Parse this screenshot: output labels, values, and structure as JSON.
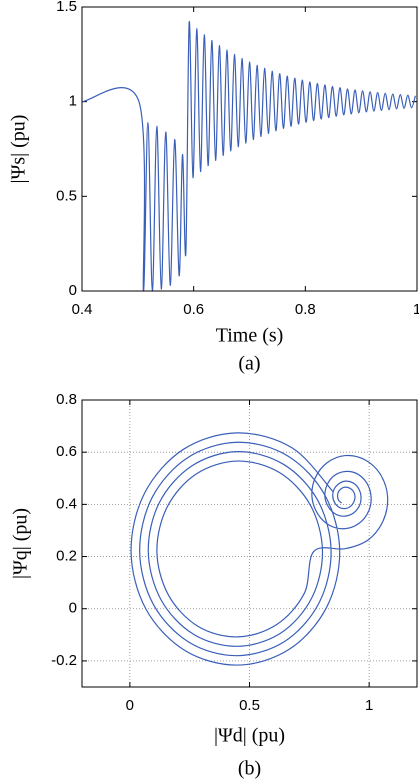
{
  "chart_data": [
    {
      "type": "line",
      "x": [
        0.4,
        0.502,
        0.51,
        0.518,
        0.526,
        0.534,
        0.542,
        0.55,
        0.558,
        0.566,
        0.574,
        0.58,
        0.586,
        0.592,
        0.59875,
        0.6055,
        0.61225,
        0.619,
        0.62575,
        0.6325,
        0.63925,
        0.646,
        0.65275,
        0.6595,
        0.66625,
        0.673,
        0.67975,
        0.6865,
        0.69325,
        0.7,
        0.70675,
        0.7135,
        0.72025,
        0.727,
        0.73375,
        0.7405,
        0.74725,
        0.754,
        0.76075,
        0.7675,
        0.77425,
        0.781,
        0.78775,
        0.7945,
        0.80125,
        0.808,
        0.81475,
        0.8215,
        0.82825,
        0.835,
        0.84175,
        0.8485,
        0.85525,
        0.862,
        0.86875,
        0.8755,
        0.88225,
        0.889,
        0.89575,
        0.9025,
        0.90925,
        0.916,
        0.92275,
        0.9295,
        0.93625,
        0.943,
        0.94975,
        0.9565,
        0.96325,
        0.97,
        0.97675,
        0.9835,
        0.99025,
        0.997
      ],
      "values": [
        1,
        1,
        0,
        0.89,
        0,
        0.87,
        0.01,
        0.84,
        0.03,
        0.8,
        0.08,
        0.72,
        0.2,
        1.42,
        0.598,
        1.385,
        0.631,
        1.353,
        0.662,
        1.323,
        0.69,
        1.296,
        0.716,
        1.272,
        0.74,
        1.249,
        0.762,
        1.228,
        0.781,
        1.209,
        0.8,
        1.192,
        0.816,
        1.176,
        0.832,
        1.161,
        0.846,
        1.148,
        0.859,
        1.135,
        0.87,
        1.124,
        0.881,
        1.114,
        0.891,
        1.104,
        0.9,
        1.096,
        0.908,
        1.088,
        0.916,
        1.08,
        0.923,
        1.074,
        0.93,
        1.067,
        0.935,
        1.062,
        0.941,
        1.057,
        0.946,
        1.052,
        0.95,
        1.048,
        0.954,
        1.044,
        0.958,
        1.04,
        0.962,
        1.037,
        0.965,
        1.034,
        0.968,
        1.031
      ],
      "color": "#3a5fb8",
      "xlim": [
        0.4,
        1
      ],
      "ylim": [
        0,
        1.5
      ],
      "xticks": [
        0.4,
        0.6,
        0.8,
        1
      ],
      "yticks": [
        0,
        0.5,
        1,
        1.5
      ],
      "xlabel": "Time (s)",
      "ylabel": "|Ψs| (pu)",
      "caption": "(a)",
      "grid": false
    },
    {
      "type": "line",
      "x": [
        0.848,
        0.679,
        0.45,
        0.224,
        0.062,
        0.005,
        0.067,
        0.23,
        0.45,
        0.667,
        0.822,
        0.877,
        0.817,
        0.661,
        0.45,
        0.242,
        0.093,
        0.041,
        0.098,
        0.248,
        0.45,
        0.649,
        0.791,
        0.841,
        0.786,
        0.643,
        0.45,
        0.26,
        0.124,
        0.077,
        0.13,
        0.266,
        0.45,
        0.631,
        0.76,
        0.805,
        0.755,
        0.625,
        0.45,
        0.278,
        0.156,
        0.113,
        0.161,
        0.284,
        0.45,
        0.613,
        0.729,
        0.769,
        0.9,
        0.996,
        1.059,
        1.077,
        1.047,
        0.982,
        0.9,
        0.825,
        0.775,
        0.761,
        0.785,
        0.836,
        0.9,
        0.959,
        0.998,
        1.008,
        0.99,
        0.95,
        0.9,
        0.854,
        0.824,
        0.815,
        0.83,
        0.861,
        0.9,
        0.936,
        0.96,
        0.966,
        0.955,
        0.931,
        0.9,
        0.872,
        0.853,
        0.848,
        0.857,
        0.876,
        0.9,
        0.922,
        0.936,
        0.941,
        0.934,
        0.919,
        0.9,
        0.883,
        0.871,
        0.868,
        0.873,
        0.885
      ],
      "values": [
        0.45,
        0.616,
        0.674,
        0.611,
        0.444,
        0.22,
        -0.001,
        -0.16,
        -0.216,
        -0.155,
        0.005,
        0.22,
        0.432,
        0.585,
        0.638,
        0.579,
        0.426,
        0.22,
        0.017,
        -0.129,
        -0.18,
        -0.124,
        0.023,
        0.22,
        0.414,
        0.553,
        0.602,
        0.548,
        0.408,
        0.22,
        0.035,
        -0.098,
        -0.144,
        -0.093,
        0.041,
        0.22,
        0.396,
        0.522,
        0.566,
        0.517,
        0.39,
        0.22,
        0.053,
        -0.067,
        -0.108,
        -0.061,
        0.059,
        0.22,
        0.23,
        0.264,
        0.338,
        0.43,
        0.515,
        0.571,
        0.587,
        0.56,
        0.502,
        0.43,
        0.364,
        0.319,
        0.307,
        0.328,
        0.374,
        0.43,
        0.482,
        0.517,
        0.526,
        0.51,
        0.474,
        0.43,
        0.39,
        0.362,
        0.355,
        0.368,
        0.396,
        0.43,
        0.462,
        0.483,
        0.489,
        0.478,
        0.457,
        0.43,
        0.405,
        0.388,
        0.384,
        0.392,
        0.409,
        0.43,
        0.45,
        0.462,
        0.466,
        0.46,
        0.447,
        0.43,
        0.415,
        0.405
      ],
      "color": "#3a5fb8",
      "xlim": [
        -0.2,
        1.2
      ],
      "ylim": [
        -0.3,
        0.8
      ],
      "xticks": [
        0,
        0.5,
        1
      ],
      "yticks": [
        -0.2,
        0,
        0.2,
        0.4,
        0.6,
        0.8
      ],
      "xlabel": "|Ψd| (pu)",
      "ylabel": "|Ψq| (pu)",
      "caption": "(b)",
      "grid": true
    }
  ]
}
